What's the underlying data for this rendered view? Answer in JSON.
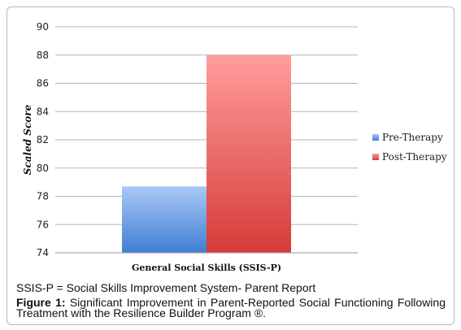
{
  "chart_data": {
    "type": "bar",
    "xlabel": "General Social Skills (SSIS-P)",
    "ylabel": "Scaled Score",
    "ylim": [
      74,
      90
    ],
    "yticks": [
      74,
      76,
      78,
      80,
      82,
      84,
      86,
      88,
      90
    ],
    "grid": true,
    "legend_position": "right",
    "series": [
      {
        "name": "Pre-Therapy",
        "values": [
          78.7
        ],
        "color": "#4a86d6"
      },
      {
        "name": "Post-Therapy",
        "values": [
          88.0
        ],
        "color": "#dd4a48"
      }
    ]
  },
  "footnote": "SSIS-P = Social Skills Improvement System- Parent Report",
  "caption": {
    "label": "Figure 1:",
    "text": "Significant Improvement in Parent-Reported Social Functioning Following Treatment with the Resilience Builder Program ®."
  }
}
